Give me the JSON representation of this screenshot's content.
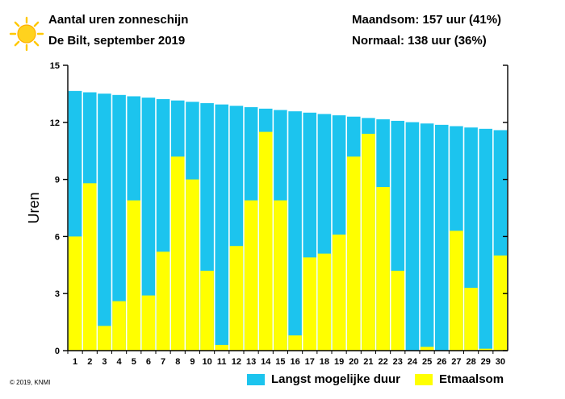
{
  "header": {
    "title": "Aantal uren zonneschijn",
    "subtitle": "De Bilt, september 2019",
    "month_total": "Maandsom: 157 uur (41%)",
    "normal": "Normaal: 138 uur (36%)"
  },
  "footer": {
    "copyright": "© 2019, KNMI"
  },
  "colors": {
    "daylight": "#1cc4ee",
    "sunshine": "#ffff00",
    "sun_icon": "#ffc800"
  },
  "icons": {
    "sun": "sun-icon"
  },
  "chart_data": {
    "type": "bar",
    "title": "",
    "ylabel": "Uren",
    "ylim": [
      0,
      15
    ],
    "yticks": [
      0,
      3,
      6,
      9,
      12,
      15
    ],
    "grid": false,
    "legend_placement": "bottom",
    "categories": [
      "1",
      "2",
      "3",
      "4",
      "5",
      "6",
      "7",
      "8",
      "9",
      "10",
      "11",
      "12",
      "13",
      "14",
      "15",
      "16",
      "17",
      "18",
      "19",
      "20",
      "21",
      "22",
      "23",
      "24",
      "25",
      "26",
      "27",
      "28",
      "29",
      "30"
    ],
    "series": [
      {
        "name": "Langst mogelijke duur",
        "values": [
          13.65,
          13.58,
          13.51,
          13.44,
          13.37,
          13.3,
          13.22,
          13.15,
          13.08,
          13.01,
          12.94,
          12.87,
          12.8,
          12.72,
          12.65,
          12.58,
          12.51,
          12.44,
          12.37,
          12.3,
          12.23,
          12.16,
          12.08,
          12.01,
          11.94,
          11.87,
          11.8,
          11.73,
          11.66,
          11.59
        ]
      },
      {
        "name": "Etmaalsom",
        "values": [
          6.0,
          8.8,
          1.3,
          2.6,
          7.9,
          2.9,
          5.2,
          10.2,
          9.0,
          4.2,
          0.3,
          5.5,
          7.9,
          11.5,
          7.9,
          0.8,
          4.9,
          5.1,
          6.1,
          10.2,
          11.4,
          8.6,
          4.2,
          0.0,
          0.2,
          0.0,
          6.3,
          3.3,
          0.1,
          5.0
        ]
      }
    ]
  }
}
